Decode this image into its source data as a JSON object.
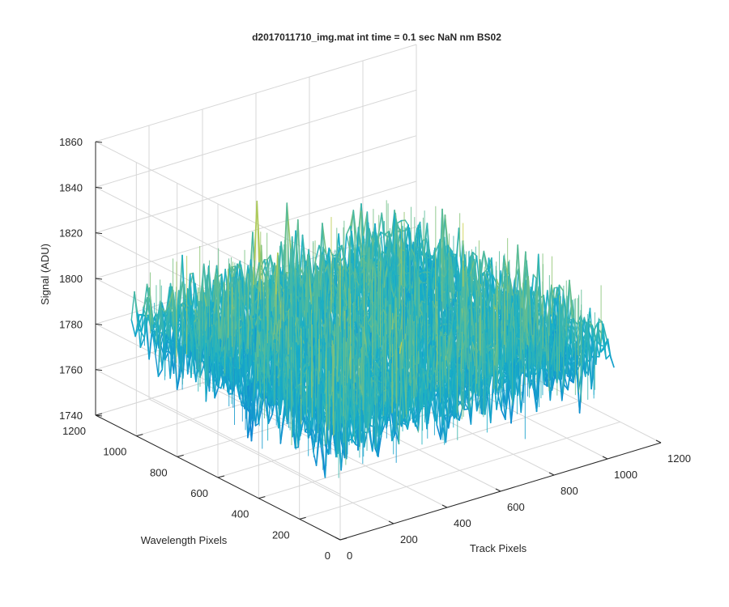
{
  "chart_data": {
    "type": "surface",
    "title": "d2017011710_img.mat int time = 0.1 sec  NaN nm BS02",
    "xlabel": "Track Pixels",
    "ylabel": "Wavelength Pixels",
    "zlabel": "Signal (ADU)",
    "xlim": [
      0,
      1200
    ],
    "ylim": [
      0,
      1200
    ],
    "zlim": [
      1740,
      1860
    ],
    "x_ticks": [
      "0",
      "200",
      "400",
      "600",
      "800",
      "1000",
      "1200"
    ],
    "y_ticks": [
      "0",
      "200",
      "400",
      "600",
      "800",
      "1000",
      "1200"
    ],
    "z_ticks": [
      "1740",
      "1760",
      "1780",
      "1800",
      "1820",
      "1840",
      "1860"
    ],
    "grid": true,
    "colormap": "parula",
    "surface": {
      "x_range": [
        0,
        1024
      ],
      "y_range": [
        0,
        1024
      ],
      "mean_signal": 1788,
      "typical_range": [
        1760,
        1820
      ],
      "peak_signal": 1848,
      "min_signal": 1755
    },
    "colors": {
      "low": "#0d76d9",
      "mid": "#19b0c6",
      "high": "#cfd044"
    }
  }
}
